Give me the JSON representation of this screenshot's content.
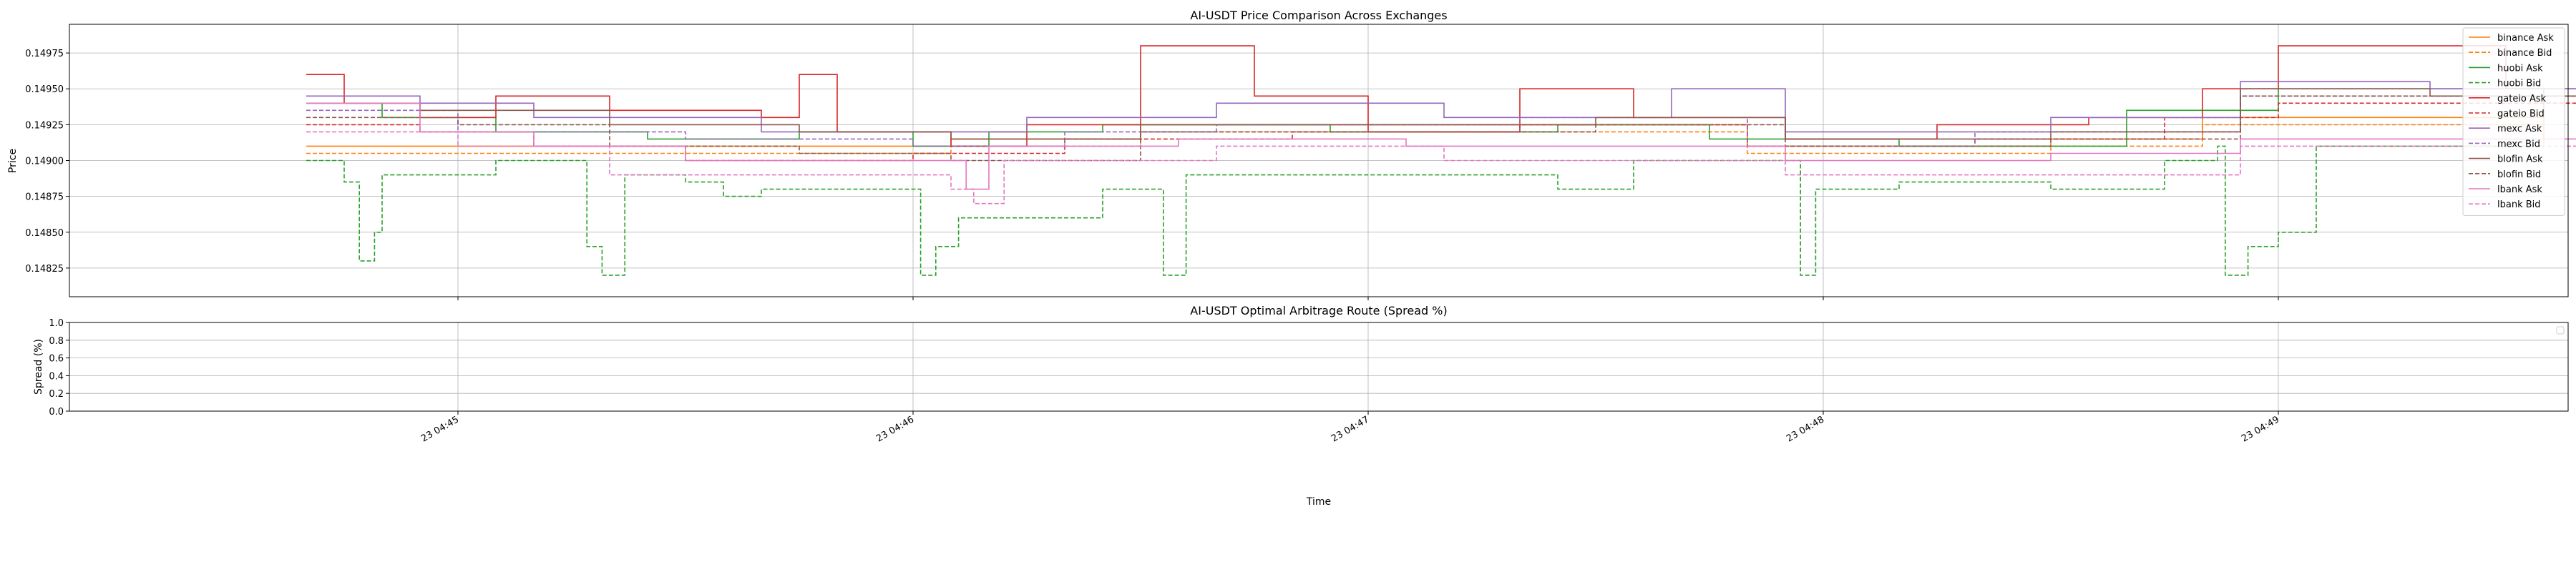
{
  "chart_data": [
    {
      "type": "line",
      "title": "AI-USDT Price Comparison Across Exchanges",
      "ylabel": "Price",
      "xlabel": "",
      "ylim": [
        0.14805,
        0.14995
      ],
      "xlim_minutes": [
        "04:44:25",
        "04:49:40"
      ],
      "yticks": [
        0.14825,
        0.1485,
        0.14875,
        0.149,
        0.14925,
        0.1495,
        0.14975
      ],
      "ytick_labels": [
        "0.14825",
        "0.14850",
        "0.14875",
        "0.14900",
        "0.14925",
        "0.14950",
        "0.14975"
      ],
      "grid": true,
      "legend_position": "upper right",
      "series": [
        {
          "name": "binance Ask",
          "color": "#ff7f0e",
          "dash": "solid",
          "points": [
            [
              "04:44:40",
              0.1491
            ],
            [
              "04:45:35",
              0.1491
            ],
            [
              "04:46:05",
              0.14915
            ],
            [
              "04:46:30",
              0.14925
            ],
            [
              "04:47:20",
              0.14925
            ],
            [
              "04:47:50",
              0.1491
            ],
            [
              "04:48:30",
              0.14915
            ],
            [
              "04:48:50",
              0.1493
            ],
            [
              "04:49:20",
              0.1493
            ],
            [
              "04:49:35",
              0.14915
            ]
          ]
        },
        {
          "name": "binance Bid",
          "color": "#ff7f0e",
          "dash": "dashed",
          "points": [
            [
              "04:44:40",
              0.14905
            ],
            [
              "04:45:35",
              0.14905
            ],
            [
              "04:46:05",
              0.1491
            ],
            [
              "04:46:30",
              0.1492
            ],
            [
              "04:47:20",
              0.1492
            ],
            [
              "04:47:50",
              0.14905
            ],
            [
              "04:48:30",
              0.1491
            ],
            [
              "04:48:50",
              0.14925
            ],
            [
              "04:49:20",
              0.14925
            ],
            [
              "04:49:35",
              0.1491
            ]
          ]
        },
        {
          "name": "huobi Ask",
          "color": "#2ca02c",
          "dash": "solid",
          "points": [
            [
              "04:44:40",
              0.1494
            ],
            [
              "04:44:50",
              0.1493
            ],
            [
              "04:45:05",
              0.1492
            ],
            [
              "04:45:25",
              0.14915
            ],
            [
              "04:45:45",
              0.1492
            ],
            [
              "04:46:00",
              0.1491
            ],
            [
              "04:46:10",
              0.1492
            ],
            [
              "04:46:25",
              0.14925
            ],
            [
              "04:46:55",
              0.1492
            ],
            [
              "04:47:25",
              0.14925
            ],
            [
              "04:47:45",
              0.14915
            ],
            [
              "04:48:10",
              0.1491
            ],
            [
              "04:48:40",
              0.14935
            ],
            [
              "04:49:00",
              0.1495
            ],
            [
              "04:49:35",
              0.1493
            ]
          ]
        },
        {
          "name": "huobi Bid",
          "color": "#2ca02c",
          "dash": "dashed",
          "points": [
            [
              "04:44:40",
              0.149
            ],
            [
              "04:44:45",
              0.14885
            ],
            [
              "04:44:47",
              0.1483
            ],
            [
              "04:44:49",
              0.1485
            ],
            [
              "04:44:50",
              0.1489
            ],
            [
              "04:45:00",
              0.1489
            ],
            [
              "04:45:05",
              0.149
            ],
            [
              "04:45:15",
              0.149
            ],
            [
              "04:45:17",
              0.1484
            ],
            [
              "04:45:19",
              0.1482
            ],
            [
              "04:45:22",
              0.1489
            ],
            [
              "04:45:30",
              0.14885
            ],
            [
              "04:45:35",
              0.14875
            ],
            [
              "04:45:40",
              0.1488
            ],
            [
              "04:46:00",
              0.1488
            ],
            [
              "04:46:01",
              0.1482
            ],
            [
              "04:46:03",
              0.1484
            ],
            [
              "04:46:06",
              0.1486
            ],
            [
              "04:46:10",
              0.1486
            ],
            [
              "04:46:25",
              0.1488
            ],
            [
              "04:46:33",
              0.1482
            ],
            [
              "04:46:36",
              0.1489
            ],
            [
              "04:47:20",
              0.1489
            ],
            [
              "04:47:25",
              0.1488
            ],
            [
              "04:47:35",
              0.149
            ],
            [
              "04:47:55",
              0.149
            ],
            [
              "04:47:57",
              0.1482
            ],
            [
              "04:47:59",
              0.1488
            ],
            [
              "04:48:10",
              0.14885
            ],
            [
              "04:48:30",
              0.1488
            ],
            [
              "04:48:45",
              0.149
            ],
            [
              "04:48:52",
              0.1491
            ],
            [
              "04:48:53",
              0.1482
            ],
            [
              "04:48:56",
              0.1484
            ],
            [
              "04:49:00",
              0.1485
            ],
            [
              "04:49:05",
              0.1491
            ],
            [
              "04:49:30",
              0.1491
            ],
            [
              "04:49:35",
              0.1491
            ]
          ]
        },
        {
          "name": "gateio Ask",
          "color": "#d62728",
          "dash": "solid",
          "points": [
            [
              "04:44:40",
              0.1496
            ],
            [
              "04:44:45",
              0.1494
            ],
            [
              "04:44:55",
              0.1493
            ],
            [
              "04:45:05",
              0.14945
            ],
            [
              "04:45:20",
              0.14935
            ],
            [
              "04:45:40",
              0.1493
            ],
            [
              "04:45:45",
              0.1496
            ],
            [
              "04:45:50",
              0.1492
            ],
            [
              "04:46:05",
              0.1491
            ],
            [
              "04:46:15",
              0.14925
            ],
            [
              "04:46:30",
              0.1498
            ],
            [
              "04:46:45",
              0.14945
            ],
            [
              "04:47:00",
              0.1492
            ],
            [
              "04:47:20",
              0.1495
            ],
            [
              "04:47:35",
              0.1493
            ],
            [
              "04:47:55",
              0.14915
            ],
            [
              "04:48:15",
              0.14925
            ],
            [
              "04:48:35",
              0.1493
            ],
            [
              "04:48:50",
              0.1495
            ],
            [
              "04:49:00",
              0.1498
            ],
            [
              "04:49:30",
              0.1495
            ],
            [
              "04:49:40",
              0.1496
            ]
          ]
        },
        {
          "name": "gateio Bid",
          "color": "#d62728",
          "dash": "dashed",
          "points": [
            [
              "04:44:40",
              0.14925
            ],
            [
              "04:44:55",
              0.1492
            ],
            [
              "04:45:10",
              0.1491
            ],
            [
              "04:45:30",
              0.149
            ],
            [
              "04:46:00",
              0.14905
            ],
            [
              "04:46:20",
              0.14915
            ],
            [
              "04:46:50",
              0.1492
            ],
            [
              "04:47:20",
              0.14925
            ],
            [
              "04:47:50",
              0.1491
            ],
            [
              "04:48:20",
              0.14915
            ],
            [
              "04:48:45",
              0.1493
            ],
            [
              "04:49:00",
              0.1494
            ],
            [
              "04:49:40",
              0.1493
            ]
          ]
        },
        {
          "name": "mexc Ask",
          "color": "#9467bd",
          "dash": "solid",
          "points": [
            [
              "04:44:40",
              0.14945
            ],
            [
              "04:44:55",
              0.1494
            ],
            [
              "04:45:10",
              0.1493
            ],
            [
              "04:45:40",
              0.1492
            ],
            [
              "04:46:00",
              0.1492
            ],
            [
              "04:46:15",
              0.1493
            ],
            [
              "04:46:40",
              0.1494
            ],
            [
              "04:47:10",
              0.1493
            ],
            [
              "04:47:40",
              0.1495
            ],
            [
              "04:47:55",
              0.1492
            ],
            [
              "04:48:30",
              0.1493
            ],
            [
              "04:48:55",
              0.14955
            ],
            [
              "04:49:20",
              0.1495
            ],
            [
              "04:49:40",
              0.1494
            ]
          ]
        },
        {
          "name": "mexc Bid",
          "color": "#9467bd",
          "dash": "dashed",
          "points": [
            [
              "04:44:40",
              0.14935
            ],
            [
              "04:45:00",
              0.1492
            ],
            [
              "04:45:30",
              0.14915
            ],
            [
              "04:46:00",
              0.1491
            ],
            [
              "04:46:20",
              0.1492
            ],
            [
              "04:46:40",
              0.14925
            ],
            [
              "04:47:20",
              0.1493
            ],
            [
              "04:47:50",
              0.1491
            ],
            [
              "04:48:20",
              0.1492
            ],
            [
              "04:48:55",
              0.14945
            ],
            [
              "04:49:40",
              0.14935
            ]
          ]
        },
        {
          "name": "blofin Ask",
          "color": "#8c564b",
          "dash": "solid",
          "points": [
            [
              "04:44:40",
              0.1494
            ],
            [
              "04:44:55",
              0.14935
            ],
            [
              "04:45:20",
              0.14925
            ],
            [
              "04:45:45",
              0.1492
            ],
            [
              "04:46:05",
              0.14915
            ],
            [
              "04:46:30",
              0.14925
            ],
            [
              "04:47:00",
              0.14925
            ],
            [
              "04:47:30",
              0.1493
            ],
            [
              "04:47:55",
              0.14915
            ],
            [
              "04:48:30",
              0.1492
            ],
            [
              "04:48:55",
              0.1495
            ],
            [
              "04:49:20",
              0.14945
            ],
            [
              "04:49:40",
              0.1494
            ]
          ]
        },
        {
          "name": "blofin Bid",
          "color": "#8c564b",
          "dash": "dashed",
          "points": [
            [
              "04:44:40",
              0.1493
            ],
            [
              "04:45:00",
              0.14925
            ],
            [
              "04:45:20",
              0.1491
            ],
            [
              "04:45:45",
              0.14905
            ],
            [
              "04:46:05",
              0.149
            ],
            [
              "04:46:30",
              0.1492
            ],
            [
              "04:47:00",
              0.1492
            ],
            [
              "04:47:30",
              0.14925
            ],
            [
              "04:47:55",
              0.1491
            ],
            [
              "04:48:30",
              0.14915
            ],
            [
              "04:48:55",
              0.14945
            ],
            [
              "04:49:40",
              0.1493
            ]
          ]
        },
        {
          "name": "lbank Ask",
          "color": "#e377c2",
          "dash": "solid",
          "points": [
            [
              "04:44:40",
              0.1494
            ],
            [
              "04:44:55",
              0.1492
            ],
            [
              "04:45:10",
              0.1491
            ],
            [
              "04:45:30",
              0.149
            ],
            [
              "04:46:05",
              0.149
            ],
            [
              "04:46:07",
              0.1488
            ],
            [
              "04:46:10",
              0.1491
            ],
            [
              "04:46:35",
              0.14915
            ],
            [
              "04:47:05",
              0.1491
            ],
            [
              "04:47:55",
              0.149
            ],
            [
              "04:48:30",
              0.14905
            ],
            [
              "04:48:55",
              0.14915
            ],
            [
              "04:49:40",
              0.1491
            ]
          ]
        },
        {
          "name": "lbank Bid",
          "color": "#e377c2",
          "dash": "dashed",
          "points": [
            [
              "04:44:40",
              0.1492
            ],
            [
              "04:45:00",
              0.1491
            ],
            [
              "04:45:20",
              0.1489
            ],
            [
              "04:45:50",
              0.1489
            ],
            [
              "04:46:05",
              0.1488
            ],
            [
              "04:46:08",
              0.1487
            ],
            [
              "04:46:12",
              0.149
            ],
            [
              "04:46:40",
              0.1491
            ],
            [
              "04:47:10",
              0.149
            ],
            [
              "04:47:55",
              0.1489
            ],
            [
              "04:48:30",
              0.1489
            ],
            [
              "04:48:55",
              0.1491
            ],
            [
              "04:49:40",
              0.1492
            ]
          ]
        }
      ]
    },
    {
      "type": "line",
      "title": "AI-USDT Optimal Arbitrage Route (Spread %)",
      "xlabel": "Time",
      "ylabel": "Spread (%)",
      "ylim": [
        0.0,
        1.0
      ],
      "yticks": [
        0.0,
        0.2,
        0.4,
        0.6,
        0.8,
        1.0
      ],
      "ytick_labels": [
        "0.0",
        "0.2",
        "0.4",
        "0.6",
        "0.8",
        "1.0"
      ],
      "xticks": [
        "04:45",
        "04:46",
        "04:47",
        "04:48",
        "04:49"
      ],
      "xtick_labels": [
        "23 04:45",
        "23 04:46",
        "23 04:47",
        "23 04:48",
        "23 04:49"
      ],
      "grid": true,
      "series": []
    }
  ]
}
